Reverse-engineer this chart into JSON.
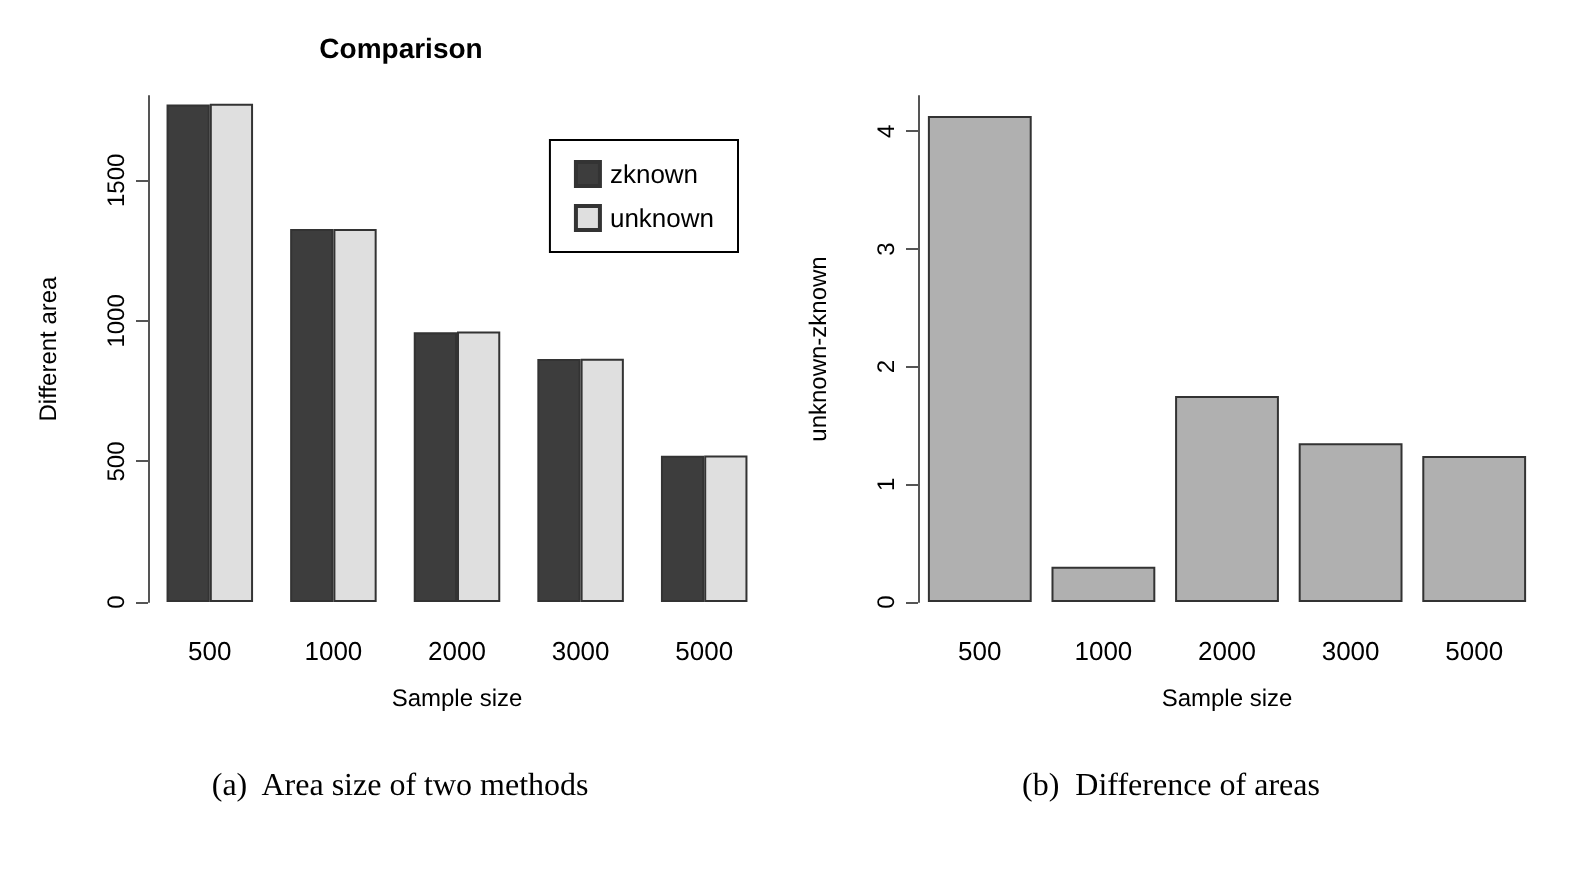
{
  "chart_data": [
    {
      "type": "bar",
      "title": "Comparison",
      "xlabel": "Sample size",
      "ylabel": "Different area",
      "categories": [
        "500",
        "1000",
        "2000",
        "3000",
        "5000"
      ],
      "series": [
        {
          "name": "zknown",
          "color": "#3d3d3d",
          "values": [
            1770,
            1327,
            960,
            864,
            520
          ]
        },
        {
          "name": "unknown",
          "color": "#dfdfdf",
          "values": [
            1772,
            1327,
            962,
            865,
            521
          ]
        }
      ],
      "ylim": [
        0,
        1800
      ],
      "yticks": [
        0,
        500,
        1000,
        1500
      ],
      "legend": "top right",
      "grid": false,
      "annotations": [
        "(a)  Area size of two methods"
      ]
    },
    {
      "type": "bar",
      "xlabel": "Sample size",
      "ylabel": "unknown-zknown",
      "categories": [
        "500",
        "1000",
        "2000",
        "3000",
        "5000"
      ],
      "series": [
        {
          "color": "#b0b0b0",
          "values": [
            4.13,
            0.3,
            1.75,
            1.35,
            1.24
          ]
        }
      ],
      "ylim": [
        0,
        4.3
      ],
      "yticks": [
        0,
        1,
        2,
        3,
        4
      ],
      "grid": false,
      "annotations": [
        "(b)  Difference of areas"
      ]
    }
  ]
}
